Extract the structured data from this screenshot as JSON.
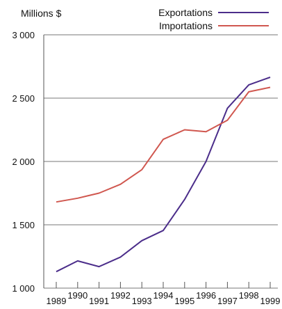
{
  "chart_data": {
    "type": "line",
    "ylabel": "Millions $",
    "x": [
      "1989",
      "1990",
      "1991",
      "1992",
      "1993",
      "1994",
      "1995",
      "1996",
      "1997",
      "1998",
      "1999"
    ],
    "y_ticks": [
      "1 000",
      "1 500",
      "2 000",
      "2 500",
      "3 000"
    ],
    "y_tick_values": [
      1000,
      1500,
      2000,
      2500,
      3000
    ],
    "ylim": [
      1000,
      3000
    ],
    "grid": "horizontal",
    "legend": "top-right",
    "series": [
      {
        "name": "Exportations",
        "color": "#4b2d8a",
        "values": [
          1130,
          1215,
          1170,
          1245,
          1375,
          1455,
          1700,
          2000,
          2420,
          2605,
          2665
        ]
      },
      {
        "name": "Importations",
        "color": "#d0574f",
        "values": [
          1680,
          1710,
          1750,
          1820,
          1935,
          2175,
          2250,
          2235,
          2325,
          2550,
          2585
        ]
      }
    ]
  }
}
